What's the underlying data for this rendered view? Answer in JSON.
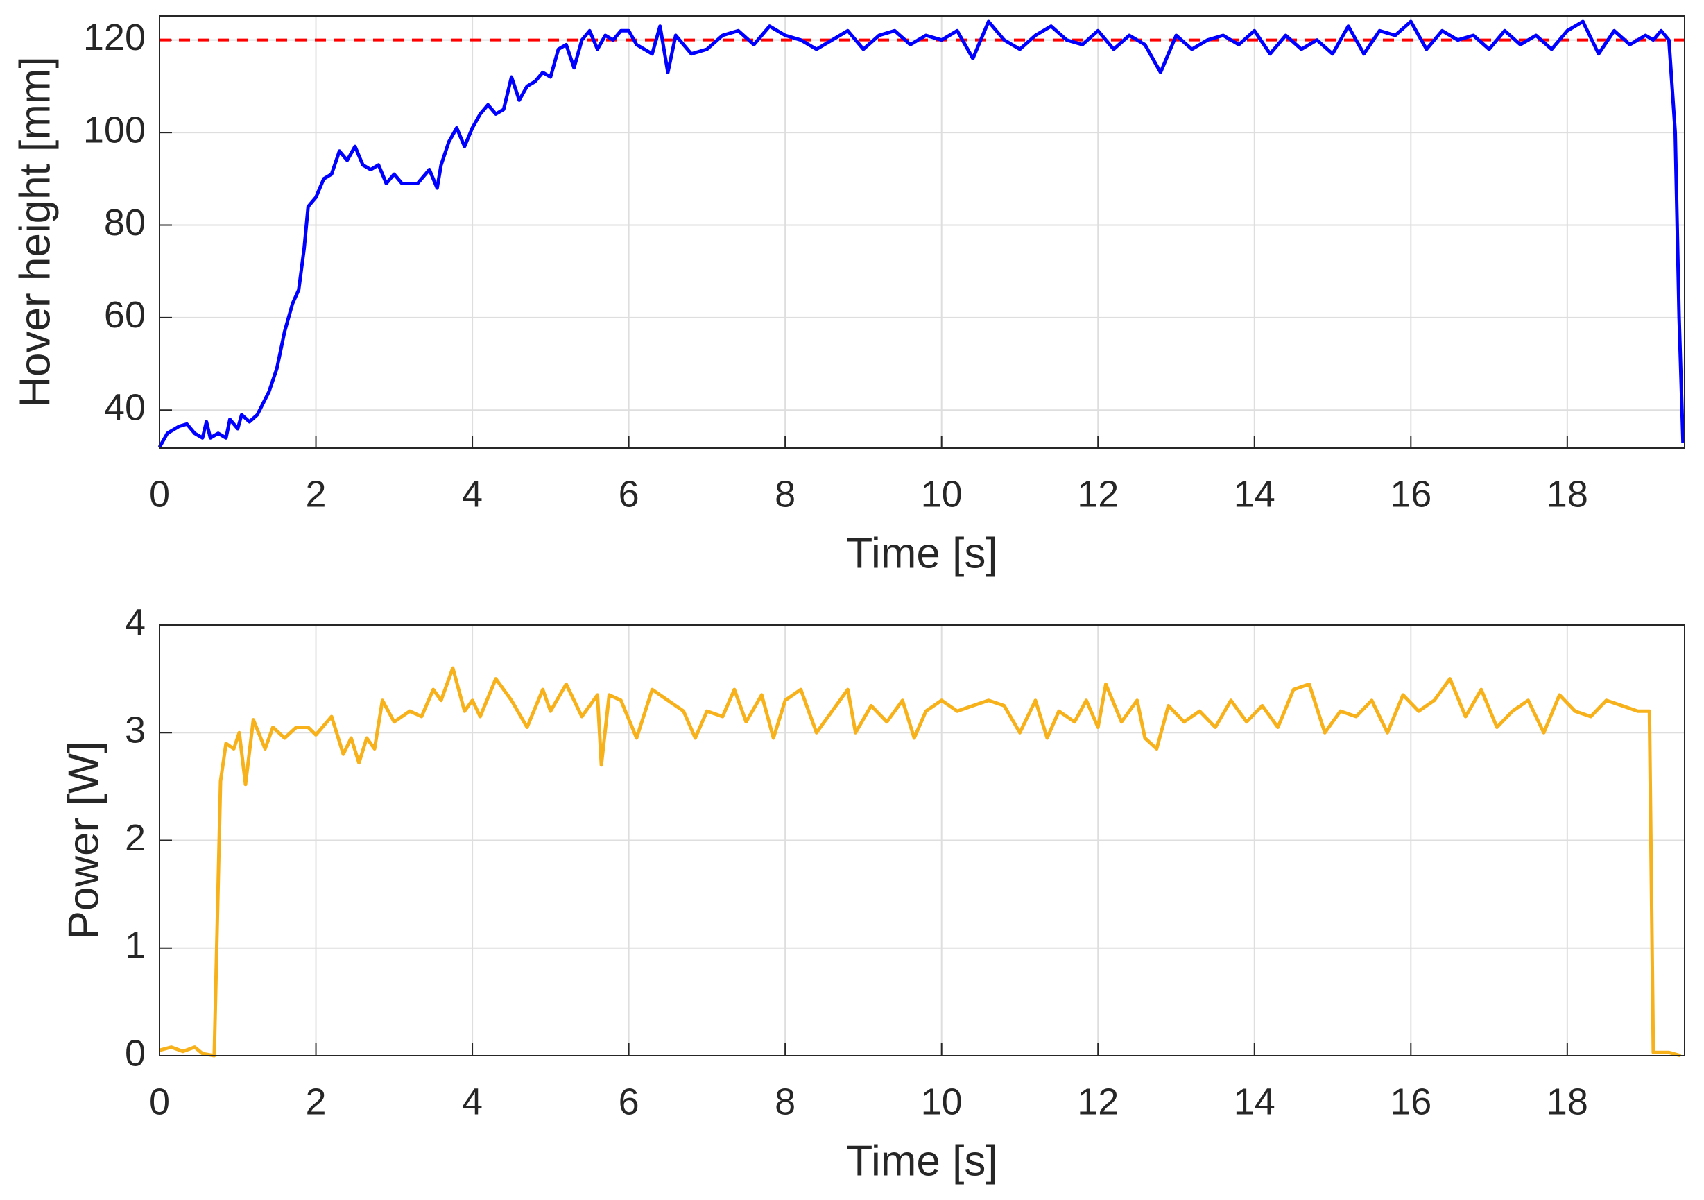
{
  "chart_data": [
    {
      "type": "line",
      "xlabel": "Time [s]",
      "ylabel": "Hover height [mm]",
      "xlim": [
        0,
        19.5
      ],
      "ylim": [
        31.8,
        125.2
      ],
      "xticks": [
        0,
        2,
        4,
        6,
        8,
        10,
        12,
        14,
        16,
        18
      ],
      "yticks": [
        40,
        60,
        80,
        100,
        120
      ],
      "grid": true,
      "reference_line": {
        "value": 120,
        "color": "#ff0000"
      },
      "x": [
        0,
        0.1,
        0.25,
        0.35,
        0.45,
        0.55,
        0.6,
        0.65,
        0.75,
        0.85,
        0.9,
        1.0,
        1.05,
        1.15,
        1.25,
        1.4,
        1.5,
        1.6,
        1.7,
        1.78,
        1.85,
        1.9,
        2.0,
        2.1,
        2.2,
        2.3,
        2.4,
        2.5,
        2.6,
        2.7,
        2.8,
        2.9,
        3.0,
        3.1,
        3.3,
        3.45,
        3.55,
        3.6,
        3.7,
        3.8,
        3.9,
        4.0,
        4.1,
        4.2,
        4.3,
        4.4,
        4.5,
        4.6,
        4.7,
        4.8,
        4.9,
        5.0,
        5.1,
        5.2,
        5.3,
        5.4,
        5.5,
        5.6,
        5.7,
        5.8,
        5.9,
        6.0,
        6.1,
        6.3,
        6.4,
        6.5,
        6.6,
        6.8,
        7.0,
        7.2,
        7.4,
        7.6,
        7.8,
        8.0,
        8.2,
        8.4,
        8.6,
        8.8,
        9.0,
        9.2,
        9.4,
        9.6,
        9.8,
        10.0,
        10.2,
        10.4,
        10.6,
        10.8,
        11.0,
        11.2,
        11.4,
        11.6,
        11.8,
        12.0,
        12.2,
        12.4,
        12.6,
        12.8,
        13.0,
        13.2,
        13.4,
        13.6,
        13.8,
        14.0,
        14.2,
        14.4,
        14.6,
        14.8,
        15.0,
        15.2,
        15.4,
        15.6,
        15.8,
        16.0,
        16.2,
        16.4,
        16.6,
        16.8,
        17.0,
        17.2,
        17.4,
        17.6,
        17.8,
        18.0,
        18.2,
        18.4,
        18.6,
        18.8,
        19.0,
        19.1,
        19.2,
        19.3,
        19.38,
        19.43,
        19.48
      ],
      "series": [
        {
          "color": "#0000ff",
          "values": [
            32,
            35,
            36.5,
            37,
            35,
            34,
            37.5,
            34,
            35,
            34,
            38,
            36,
            39,
            37.5,
            39,
            44,
            49,
            57,
            63,
            66,
            75,
            84,
            86,
            90,
            91,
            96,
            94,
            97,
            93,
            92,
            93,
            89,
            91,
            89,
            89,
            92,
            88,
            93,
            98,
            101,
            97,
            101,
            104,
            106,
            104,
            105,
            112,
            107,
            110,
            111,
            113,
            112,
            118,
            119,
            114,
            120,
            122,
            118,
            121,
            120,
            122,
            122,
            119,
            117,
            123,
            113,
            121,
            117,
            118,
            121,
            122,
            119,
            123,
            121,
            120,
            118,
            120,
            122,
            118,
            121,
            122,
            119,
            121,
            120,
            122,
            116,
            124,
            120,
            118,
            121,
            123,
            120,
            119,
            122,
            118,
            121,
            119,
            113,
            121,
            118,
            120,
            121,
            119,
            122,
            117,
            121,
            118,
            120,
            117,
            123,
            117,
            122,
            121,
            124,
            118,
            122,
            120,
            121,
            118,
            122,
            119,
            121,
            118,
            122,
            124,
            117,
            122,
            119,
            121,
            120,
            122,
            120,
            100,
            60,
            33
          ]
        }
      ]
    },
    {
      "type": "line",
      "xlabel": "Time [s]",
      "ylabel": "Power [W]",
      "xlim": [
        0,
        19.5
      ],
      "ylim": [
        0,
        4
      ],
      "xticks": [
        0,
        2,
        4,
        6,
        8,
        10,
        12,
        14,
        16,
        18
      ],
      "yticks": [
        0,
        1,
        2,
        3,
        4
      ],
      "grid": true,
      "x": [
        0,
        0.15,
        0.3,
        0.45,
        0.55,
        0.7,
        0.78,
        0.85,
        0.95,
        1.02,
        1.1,
        1.2,
        1.35,
        1.45,
        1.6,
        1.75,
        1.9,
        2.0,
        2.2,
        2.35,
        2.45,
        2.55,
        2.65,
        2.75,
        2.85,
        3.0,
        3.2,
        3.35,
        3.5,
        3.6,
        3.75,
        3.9,
        4.0,
        4.1,
        4.3,
        4.5,
        4.7,
        4.9,
        5.0,
        5.2,
        5.4,
        5.6,
        5.65,
        5.75,
        5.9,
        6.1,
        6.3,
        6.5,
        6.7,
        6.85,
        7.0,
        7.2,
        7.35,
        7.5,
        7.7,
        7.85,
        8.0,
        8.2,
        8.4,
        8.6,
        8.8,
        8.9,
        9.1,
        9.3,
        9.5,
        9.65,
        9.8,
        10.0,
        10.2,
        10.4,
        10.6,
        10.8,
        11.0,
        11.2,
        11.35,
        11.5,
        11.7,
        11.85,
        12.0,
        12.1,
        12.3,
        12.5,
        12.6,
        12.75,
        12.9,
        13.1,
        13.3,
        13.5,
        13.7,
        13.9,
        14.1,
        14.3,
        14.5,
        14.7,
        14.9,
        15.1,
        15.3,
        15.5,
        15.7,
        15.9,
        16.1,
        16.3,
        16.5,
        16.7,
        16.9,
        17.1,
        17.3,
        17.5,
        17.7,
        17.9,
        18.1,
        18.3,
        18.5,
        18.7,
        18.9,
        19.05,
        19.1,
        19.3,
        19.45
      ],
      "series": [
        {
          "color": "#f7b21b",
          "values": [
            0.05,
            0.08,
            0.04,
            0.08,
            0.02,
            0,
            2.55,
            2.9,
            2.85,
            3.0,
            2.52,
            3.12,
            2.85,
            3.05,
            2.95,
            3.05,
            3.05,
            2.98,
            3.15,
            2.8,
            2.95,
            2.72,
            2.95,
            2.85,
            3.3,
            3.1,
            3.2,
            3.15,
            3.4,
            3.3,
            3.6,
            3.2,
            3.3,
            3.15,
            3.5,
            3.3,
            3.05,
            3.4,
            3.2,
            3.45,
            3.15,
            3.35,
            2.7,
            3.35,
            3.3,
            2.95,
            3.4,
            3.3,
            3.2,
            2.95,
            3.2,
            3.15,
            3.4,
            3.1,
            3.35,
            2.95,
            3.3,
            3.4,
            3.0,
            3.2,
            3.4,
            3.0,
            3.25,
            3.1,
            3.3,
            2.95,
            3.2,
            3.3,
            3.2,
            3.25,
            3.3,
            3.25,
            3.0,
            3.3,
            2.95,
            3.2,
            3.1,
            3.3,
            3.05,
            3.45,
            3.1,
            3.3,
            2.95,
            2.85,
            3.25,
            3.1,
            3.2,
            3.05,
            3.3,
            3.1,
            3.25,
            3.05,
            3.4,
            3.45,
            3.0,
            3.2,
            3.15,
            3.3,
            3.0,
            3.35,
            3.2,
            3.3,
            3.5,
            3.15,
            3.4,
            3.05,
            3.2,
            3.3,
            3.0,
            3.35,
            3.2,
            3.15,
            3.3,
            3.25,
            3.2,
            3.2,
            0.03,
            0.03,
            0
          ]
        }
      ]
    }
  ]
}
